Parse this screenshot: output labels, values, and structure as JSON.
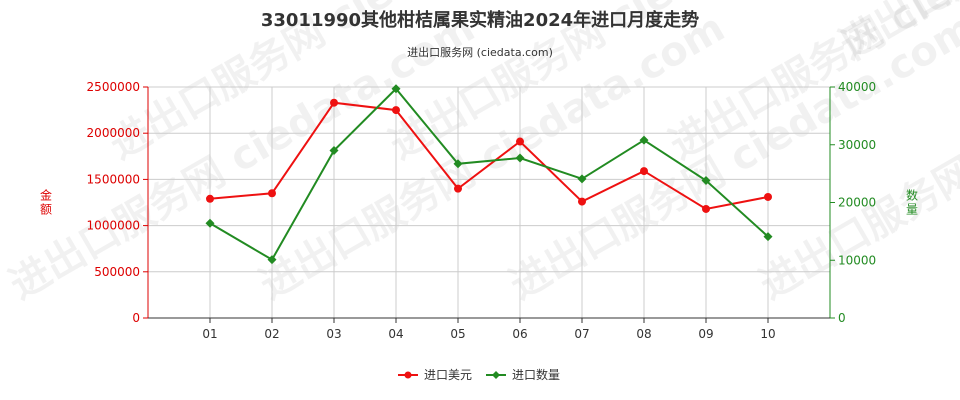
{
  "chart_data": {
    "type": "line",
    "title": "33011990其他柑桔属果实精油2024年进口月度走势",
    "subtitle": "进出口服务网 (ciedata.com)",
    "watermark": "进出口服务网 ciedata.com",
    "categories": [
      "01",
      "02",
      "03",
      "04",
      "05",
      "06",
      "07",
      "08",
      "09",
      "10"
    ],
    "y_left": {
      "label": "金额",
      "ylim": [
        0,
        2500000
      ],
      "ticks": [
        "0",
        "500000",
        "1000000",
        "1500000",
        "2000000",
        "2500000"
      ],
      "color": "#dd0000"
    },
    "y_right": {
      "label": "数量",
      "ylim": [
        0,
        40000
      ],
      "ticks": [
        "0",
        "10000",
        "20000",
        "30000",
        "40000"
      ],
      "color": "#228B22"
    },
    "series": [
      {
        "name": "进口美元",
        "axis": "left",
        "color": "#ee1111",
        "values": [
          1290000,
          1350000,
          2330000,
          2250000,
          1400000,
          1910000,
          1260000,
          1590000,
          1180000,
          1310000
        ]
      },
      {
        "name": "进口数量",
        "axis": "right",
        "color": "#228B22",
        "values": [
          16400,
          10100,
          29000,
          39700,
          26700,
          27700,
          24100,
          30800,
          23800,
          14100
        ]
      }
    ],
    "grid": true,
    "legend_position": "bottom-center"
  }
}
